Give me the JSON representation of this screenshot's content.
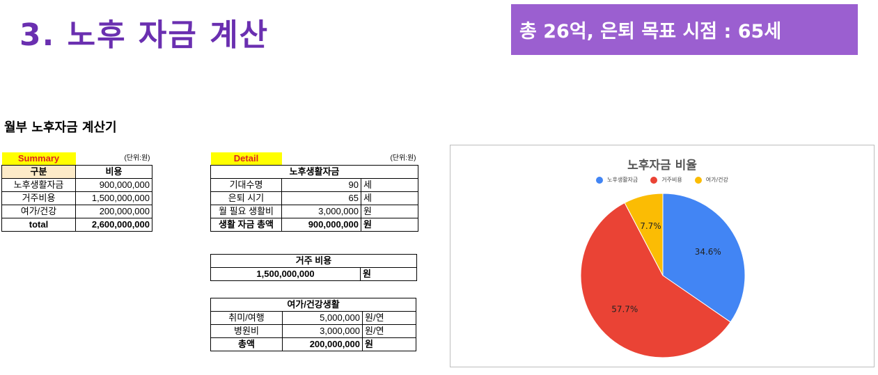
{
  "header": {
    "title": "3. 노후 자금 계산",
    "badge": "총 26억, 은퇴 목표 시점 : 65세"
  },
  "section_title": "월부 노후자금 계산기",
  "summary": {
    "tag": "Summary",
    "unit": "(단위:원)",
    "col_headers": [
      "구분",
      "비용"
    ],
    "rows": [
      {
        "label": "노후생활자금",
        "value": "900,000,000"
      },
      {
        "label": "거주비용",
        "value": "1,500,000,000"
      },
      {
        "label": "여가/건강",
        "value": "200,000,000"
      }
    ],
    "total_label": "total",
    "total_value": "2,600,000,000"
  },
  "detail": {
    "tag": "Detail",
    "unit": "(단위:원)",
    "living": {
      "title": "노후생활자금",
      "rows": [
        {
          "label": "기대수명",
          "value": "90",
          "unit": "세"
        },
        {
          "label": "은퇴 시기",
          "value": "65",
          "unit": "세"
        },
        {
          "label": "월 필요 생활비",
          "value": "3,000,000",
          "unit": "원"
        }
      ],
      "total_label": "생활 자금 총액",
      "total_value": "900,000,000",
      "total_unit": "원"
    },
    "housing": {
      "title": "거주 비용",
      "value": "1,500,000,000",
      "unit": "원"
    },
    "leisure": {
      "title": "여가/건강생활",
      "rows": [
        {
          "label": "취미/여행",
          "value": "5,000,000",
          "unit": "원/연"
        },
        {
          "label": "병원비",
          "value": "3,000,000",
          "unit": "원/연"
        }
      ],
      "total_label": "총액",
      "total_value": "200,000,000",
      "total_unit": "원"
    }
  },
  "chart_data": {
    "type": "pie",
    "title": "노후자금 비율",
    "legend_position": "top",
    "categories": [
      "노후생활자금",
      "거주비용",
      "여가/건강"
    ],
    "values": [
      34.6,
      57.7,
      7.7
    ],
    "labels": [
      "34.6%",
      "57.7%",
      "7.7%"
    ],
    "colors": [
      "#4285f4",
      "#ea4335",
      "#fbbc04"
    ]
  }
}
